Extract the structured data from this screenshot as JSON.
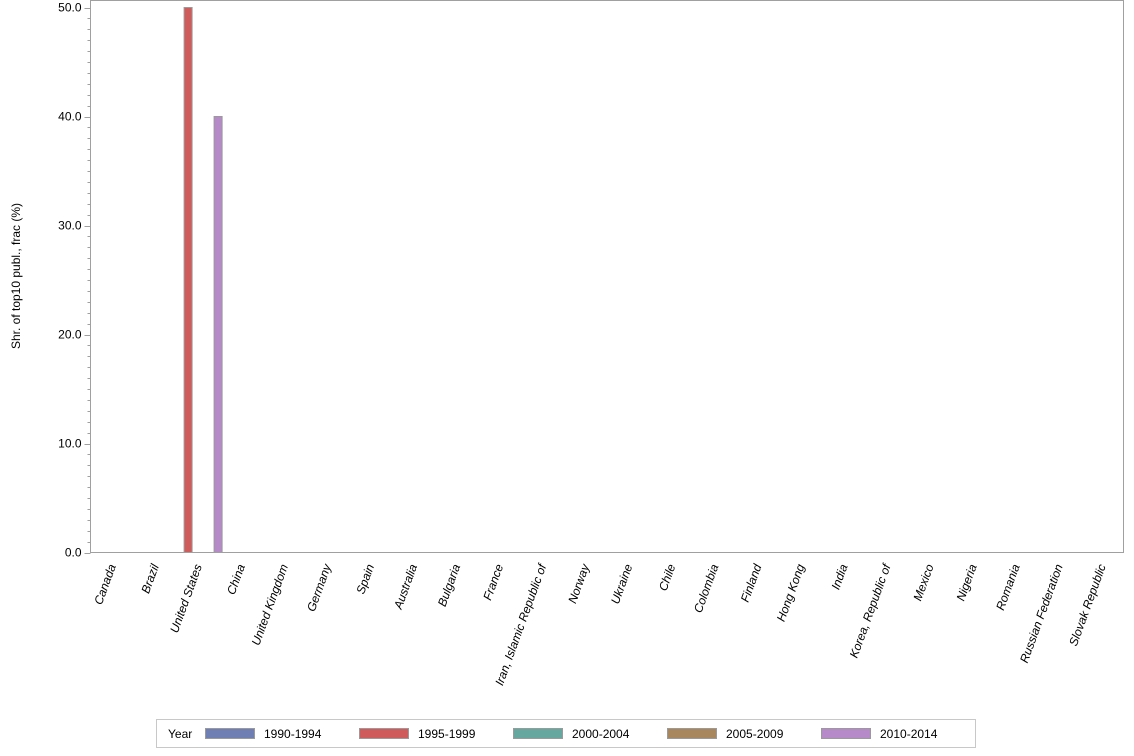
{
  "chart_data": {
    "type": "bar",
    "title": "",
    "xlabel": "",
    "ylabel": "Shr. of top10 publ., frac (%)",
    "ylim": [
      0,
      50
    ],
    "yticks": [
      "0.0",
      "10.0",
      "20.0",
      "30.0",
      "40.0",
      "50.0"
    ],
    "grid": false,
    "legend_position": "bottom",
    "legend_title": "Year",
    "categories": [
      "Canada",
      "Brazil",
      "United States",
      "China",
      "United Kingdom",
      "Germany",
      "Spain",
      "Australia",
      "Bulgaria",
      "France",
      "Iran, Islamic Republic of",
      "Norway",
      "Ukraine",
      "Chile",
      "Colombia",
      "Finland",
      "Hong Kong",
      "India",
      "Korea, Republic of",
      "Mexico",
      "Nigeria",
      "Romania",
      "Russian Federation",
      "Slovak Republic"
    ],
    "series": [
      {
        "name": "1990-1994",
        "color": "#6f7eb3",
        "values": [
          0,
          0,
          0,
          0,
          0,
          0,
          0,
          0,
          0,
          0,
          0,
          0,
          0,
          0,
          0,
          0,
          0,
          0,
          0,
          0,
          0,
          0,
          0,
          0
        ]
      },
      {
        "name": "1995-1999",
        "color": "#d05b5b",
        "values": [
          0,
          0,
          50.0,
          0,
          0,
          0,
          0,
          0,
          0,
          0,
          0,
          0,
          0,
          0,
          0,
          0,
          0,
          0,
          0,
          0,
          0,
          0,
          0,
          0
        ]
      },
      {
        "name": "2000-2004",
        "color": "#66a8a0",
        "values": [
          0,
          0,
          0,
          0,
          0,
          0,
          0,
          0,
          0,
          0,
          0,
          0,
          0,
          0,
          0,
          0,
          0,
          0,
          0,
          0,
          0,
          0,
          0,
          0
        ]
      },
      {
        "name": "2005-2009",
        "color": "#a8865e",
        "values": [
          0,
          0,
          0,
          0,
          0,
          0,
          0,
          0,
          0,
          0,
          0,
          0,
          0,
          0,
          0,
          0,
          0,
          0,
          0,
          0,
          0,
          0,
          0,
          0
        ]
      },
      {
        "name": "2010-2014",
        "color": "#b689c9",
        "values": [
          0,
          0,
          40.0,
          0,
          0,
          0,
          0,
          0,
          0,
          0,
          0,
          0,
          0,
          0,
          0,
          0,
          0,
          0,
          0,
          0,
          0,
          0,
          0,
          0
        ]
      }
    ]
  },
  "legend": {
    "title": "Year",
    "items": [
      {
        "label": "1990-1994",
        "color": "#6f7eb3"
      },
      {
        "label": "1995-1999",
        "color": "#d05b5b"
      },
      {
        "label": "2000-2004",
        "color": "#66a8a0"
      },
      {
        "label": "2005-2009",
        "color": "#a8865e"
      },
      {
        "label": "2010-2014",
        "color": "#b689c9"
      }
    ]
  }
}
